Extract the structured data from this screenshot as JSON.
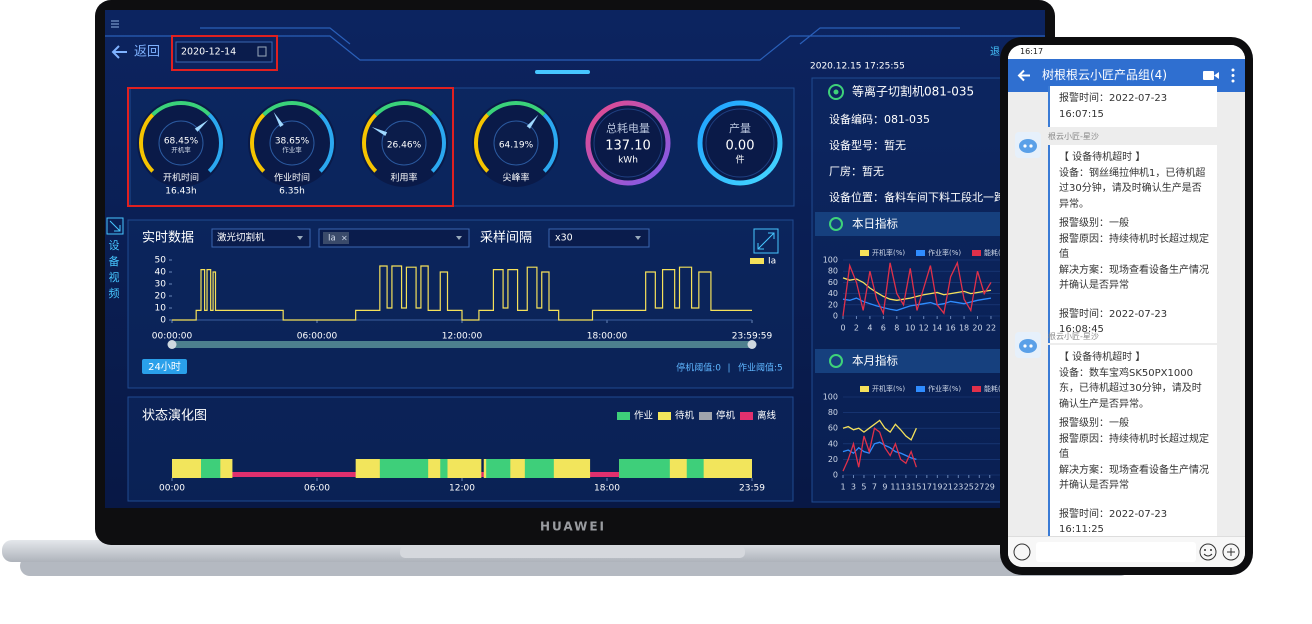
{
  "laptop": {
    "brand": "HUAWEI",
    "header": {
      "back": "返回",
      "date": "2020-12-14",
      "timestamp": "2020.12.15 17:25:55",
      "edge_text": "退"
    },
    "gauges": [
      {
        "value": 68.45,
        "value_label": "68.45%",
        "sub": "开机率",
        "name": "开机时间",
        "amount": "16.43h"
      },
      {
        "value": 38.65,
        "value_label": "38.65%",
        "sub": "作业率",
        "name": "作业时间",
        "amount": "6.35h"
      },
      {
        "value": 26.46,
        "value_label": "26.46%",
        "name": "利用率"
      },
      {
        "value": 64.19,
        "value_label": "64.19%",
        "name": "尖峰率"
      }
    ],
    "totals": [
      {
        "label": "总耗电量",
        "value": "137.10",
        "unit": "kWh"
      },
      {
        "label": "产量",
        "value": "0.00",
        "unit": "件"
      }
    ],
    "side_tab": "设备视频",
    "realtime": {
      "title": "实时数据",
      "device": "激光切割机",
      "tag": "Ia",
      "tag_close": "×",
      "interval_label": "采样间隔",
      "interval": "x30",
      "legend": "Ia",
      "range_badge": "24小时",
      "stop_threshold": "停机阈值:0",
      "separator": "|",
      "work_threshold": "作业阈值:5",
      "chart": {
        "type": "line",
        "color": "#f5e15a",
        "x": [
          0,
          1.0,
          1.0,
          1.2,
          1.2,
          1.35,
          1.35,
          1.45,
          1.45,
          1.6,
          1.6,
          1.7,
          1.7,
          1.8,
          1.8,
          4.6,
          4.6,
          7.6,
          7.6,
          8.6,
          8.6,
          8.9,
          8.9,
          9.1,
          9.1,
          9.5,
          9.5,
          9.7,
          9.7,
          10.1,
          10.1,
          10.3,
          10.3,
          10.6,
          10.6,
          11.1,
          11.1,
          11.4,
          11.4,
          12.0,
          12.0,
          12.7,
          12.7,
          13.3,
          13.3,
          13.7,
          13.7,
          13.9,
          13.9,
          14.3,
          14.3,
          14.7,
          14.7,
          15.1,
          15.1,
          15.3,
          15.3,
          15.6,
          15.6,
          16.0,
          16.0,
          17.4,
          17.4,
          19.6,
          19.6,
          20.0,
          20.0,
          20.3,
          20.3,
          20.8,
          20.8,
          21.0,
          21.0,
          21.5,
          21.5,
          21.8,
          21.8,
          22.3,
          22.3,
          24
        ],
        "values": [
          0,
          0,
          8,
          8,
          42,
          42,
          8,
          8,
          42,
          42,
          8,
          8,
          40,
          40,
          8,
          8,
          0,
          0,
          8,
          8,
          45,
          45,
          10,
          10,
          45,
          45,
          10,
          10,
          44,
          44,
          10,
          10,
          45,
          45,
          8,
          8,
          40,
          40,
          8,
          8,
          0,
          0,
          8,
          8,
          42,
          42,
          10,
          10,
          42,
          42,
          8,
          8,
          44,
          44,
          10,
          10,
          40,
          40,
          8,
          8,
          0,
          0,
          8,
          8,
          40,
          40,
          10,
          10,
          42,
          42,
          10,
          10,
          44,
          44,
          10,
          10,
          40,
          40,
          8,
          8
        ],
        "xlim": [
          0,
          24
        ],
        "ylim": [
          0,
          50
        ],
        "yticks": [
          0,
          10,
          20,
          30,
          40,
          50
        ],
        "xticks": [
          {
            "value": 0,
            "label": "00:00:00"
          },
          {
            "value": 6,
            "label": "06:00:00"
          },
          {
            "value": 12,
            "label": "12:00:00"
          },
          {
            "value": 18,
            "label": "18:00:00"
          },
          {
            "value": 24,
            "label": "23:59:59"
          }
        ]
      }
    },
    "state": {
      "title": "状态演化图",
      "legend": [
        {
          "name": "作业",
          "color": "#3ecf7a"
        },
        {
          "name": "待机",
          "color": "#f2e55c"
        },
        {
          "name": "停机",
          "color": "#a0a4ad"
        },
        {
          "name": "离线",
          "color": "#e0306e"
        }
      ],
      "xlim": [
        0,
        24
      ],
      "xticks": [
        {
          "value": 0,
          "label": "00:00"
        },
        {
          "value": 6,
          "label": "06:00"
        },
        {
          "value": 12,
          "label": "12:00"
        },
        {
          "value": 18,
          "label": "18:00"
        },
        {
          "value": 24,
          "label": "23:59"
        }
      ],
      "segments": [
        {
          "from": 0,
          "to": 24,
          "state": 3
        },
        {
          "from": 0,
          "to": 2.5,
          "state": 1
        },
        {
          "from": 1.2,
          "to": 2.0,
          "state": 0
        },
        {
          "from": 7.6,
          "to": 12.8,
          "state": 1
        },
        {
          "from": 8.6,
          "to": 10.6,
          "state": 0
        },
        {
          "from": 11.1,
          "to": 11.4,
          "state": 0
        },
        {
          "from": 12.9,
          "to": 17.3,
          "state": 1
        },
        {
          "from": 13.0,
          "to": 14.0,
          "state": 0
        },
        {
          "from": 14.6,
          "to": 15.8,
          "state": 0
        },
        {
          "from": 18.5,
          "to": 24,
          "state": 1
        },
        {
          "from": 18.5,
          "to": 20.6,
          "state": 0
        },
        {
          "from": 21.3,
          "to": 22.0,
          "state": 0
        }
      ]
    },
    "device": {
      "title": "等离子切割机081-035",
      "rows": [
        "设备编码：081-035",
        "设备型号：暂无",
        "厂房：暂无",
        "设备位置：备料车间下料工段北一跨"
      ]
    },
    "daily": {
      "title": "本日指标",
      "chart": {
        "type": "line",
        "x": [
          0,
          1,
          2,
          3,
          4,
          5,
          6,
          7,
          8,
          9,
          10,
          11,
          12,
          13,
          14,
          15,
          16,
          17,
          18,
          19,
          20,
          21,
          22
        ],
        "series": [
          {
            "name": "开机率(%)",
            "color": "#f5e15a",
            "values": [
              68,
              64,
              66,
              60,
              50,
              42,
              35,
              30,
              28,
              30,
              32,
              35,
              38,
              40,
              42,
              38,
              40,
              42,
              44,
              40,
              42,
              44,
              46
            ]
          },
          {
            "name": "作业率(%)",
            "color": "#2f8cff",
            "values": [
              30,
              28,
              32,
              26,
              22,
              18,
              15,
              12,
              10,
              14,
              18,
              20,
              22,
              24,
              20,
              22,
              26,
              24,
              22,
              25,
              28,
              30,
              32
            ]
          },
          {
            "name": "能耗(k",
            "color": "#e0304a",
            "values": [
              0,
              90,
              60,
              10,
              80,
              30,
              5,
              95,
              40,
              20,
              85,
              10,
              50,
              90,
              20,
              5,
              70,
              95,
              30,
              10,
              80,
              40,
              60
            ]
          }
        ],
        "xlim": [
          0,
          22.6
        ],
        "ylim": [
          0,
          100
        ],
        "yticks": [
          0,
          20,
          40,
          60,
          80,
          100
        ],
        "xticks": [
          0,
          2,
          4,
          6,
          8,
          10,
          12,
          14,
          16,
          18,
          20,
          22
        ]
      }
    },
    "monthly": {
      "title": "本月指标",
      "chart": {
        "type": "line",
        "x": [
          1,
          2,
          3,
          4,
          5,
          6,
          7,
          8,
          9,
          10,
          11,
          12,
          13,
          14,
          15
        ],
        "series": [
          {
            "name": "开机率(%)",
            "color": "#f5e15a",
            "values": [
              60,
              62,
              58,
              60,
              55,
              60,
              65,
              70,
              60,
              55,
              65,
              58,
              50,
              45,
              60
            ]
          },
          {
            "name": "作业率(%)",
            "color": "#2f8cff",
            "values": [
              30,
              32,
              28,
              35,
              30,
              28,
              40,
              42,
              38,
              35,
              30,
              28,
              25,
              22,
              20
            ]
          },
          {
            "name": "能耗(k",
            "color": "#e0304a",
            "values": [
              5,
              20,
              40,
              10,
              50,
              30,
              60,
              55,
              35,
              25,
              40,
              20,
              15,
              30,
              10
            ]
          }
        ],
        "xlim": [
          1,
          30
        ],
        "ylim": [
          0,
          100
        ],
        "yticks": [
          0,
          20,
          40,
          60,
          80,
          100
        ],
        "xticks": [
          1,
          3,
          5,
          7,
          9,
          11,
          13,
          15,
          17,
          19,
          21,
          23,
          25,
          27,
          29
        ]
      }
    }
  },
  "phone": {
    "time": "16:17",
    "title": "树根根云小匠产品组(4)",
    "messages": [
      {
        "lines": [
          "报警时间：2022-07-23 16:07:15"
        ]
      },
      {
        "sender": "根云小匠-星沙",
        "lines": [
          "【 设备待机超时 】",
          "设备：钢丝绳拉伸机1，已待机超过30分钟，请及时确认生产是否异常。",
          "报警级别：一般",
          "报警原因：持续待机时长超过规定值",
          "解决方案：现场查看设备生产情况并确认是否异常",
          "报警时间：2022-07-23 16:08:45"
        ]
      },
      {
        "sender": "根云小匠-星沙",
        "lines": [
          "【 设备待机超时 】",
          "设备：数车宝鸡SK50PX1000东，已待机超过30分钟，请及时确认生产是否异常。",
          "报警级别：一般",
          "报警原因：持续待机时长超过规定值",
          "解决方案：现场查看设备生产情况并确认是否异常",
          "报警时间：2022-07-23 16:11:25"
        ]
      }
    ]
  }
}
